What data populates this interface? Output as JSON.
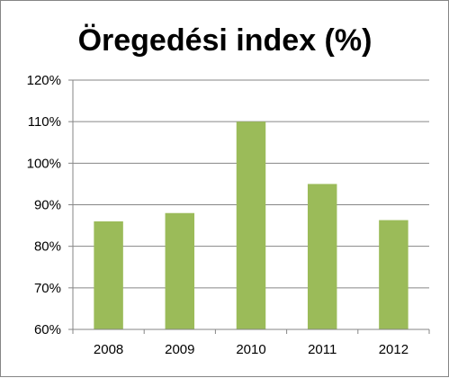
{
  "chart_data": {
    "type": "bar",
    "title": "Öregedési index (%)",
    "categories": [
      "2008",
      "2009",
      "2010",
      "2011",
      "2012"
    ],
    "values": [
      86,
      88,
      110,
      95,
      86.3
    ],
    "y_ticks": [
      "60%",
      "70%",
      "80%",
      "90%",
      "100%",
      "110%",
      "120%"
    ],
    "ylim": [
      60,
      120
    ],
    "xlabel": "",
    "ylabel": "",
    "grid": true,
    "legend": "none",
    "bar_color": "#9BBB59",
    "grid_color": "#868686"
  }
}
